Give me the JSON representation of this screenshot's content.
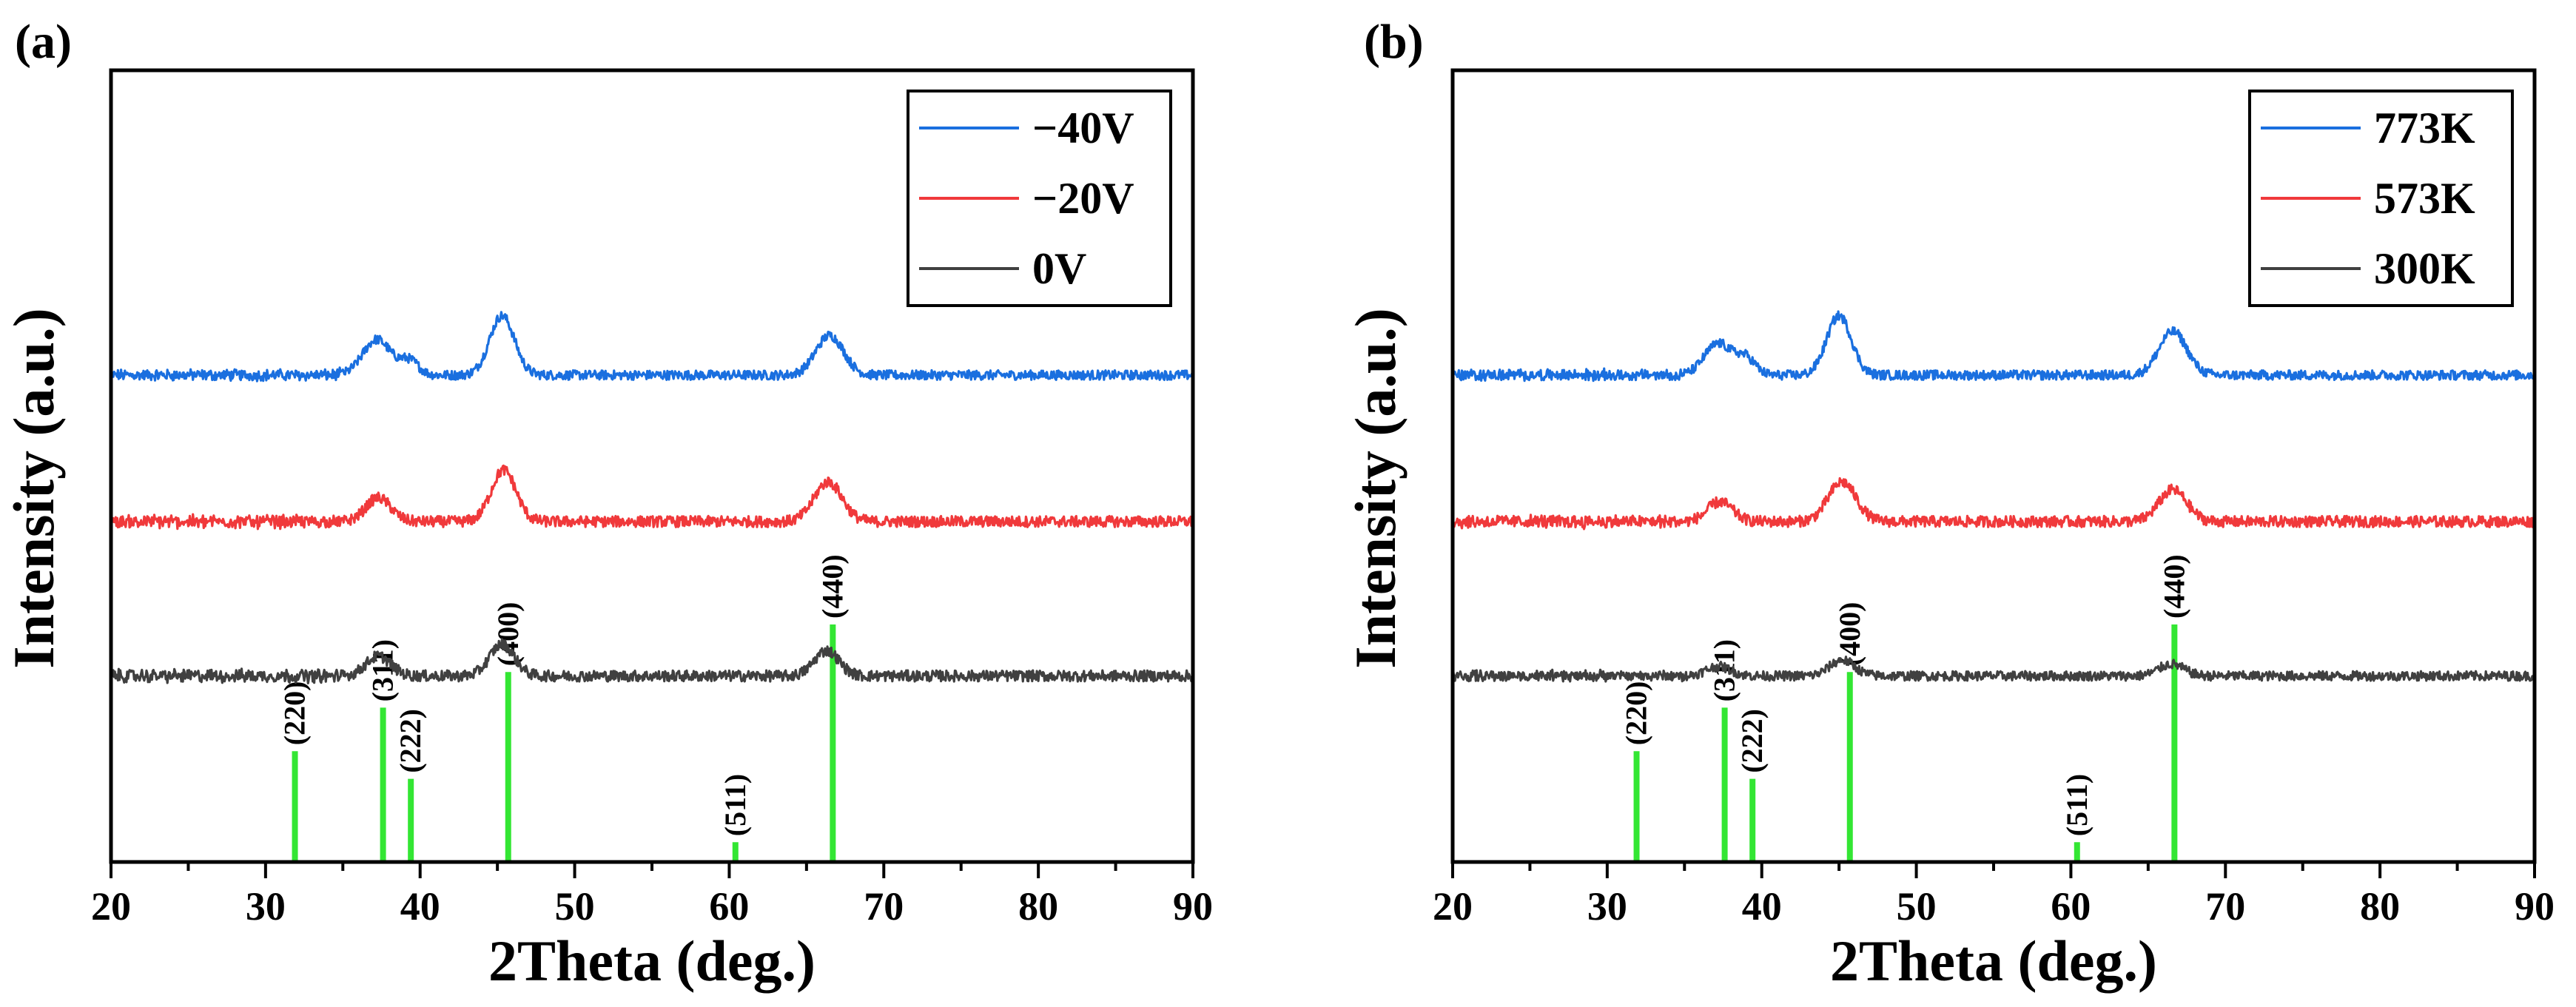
{
  "chart_data": [
    {
      "panel_label": "(a)",
      "type": "line",
      "xlabel": "2Theta (deg.)",
      "ylabel": "Intensity (a.u.)",
      "xlim": [
        20,
        90
      ],
      "xticks": [
        20,
        30,
        40,
        50,
        60,
        70,
        80,
        90
      ],
      "y_ticks_shown": false,
      "legend_position": "top-right",
      "series": [
        {
          "name": "−40V",
          "color": "#1a6fdf",
          "baseline": 0.615,
          "noise": 0.006,
          "peaks": [
            {
              "x": 37.2,
              "h": 0.045,
              "w": 0.9
            },
            {
              "x": 39.3,
              "h": 0.018,
              "w": 0.6
            },
            {
              "x": 45.3,
              "h": 0.075,
              "w": 0.8
            },
            {
              "x": 66.5,
              "h": 0.05,
              "w": 0.9
            }
          ]
        },
        {
          "name": "−20V",
          "color": "#f0393b",
          "baseline": 0.43,
          "noise": 0.007,
          "peaks": [
            {
              "x": 37.3,
              "h": 0.03,
              "w": 0.8
            },
            {
              "x": 45.4,
              "h": 0.065,
              "w": 0.8
            },
            {
              "x": 66.4,
              "h": 0.05,
              "w": 0.9
            }
          ]
        },
        {
          "name": "0V",
          "color": "#404040",
          "baseline": 0.235,
          "noise": 0.007,
          "peaks": [
            {
              "x": 37.3,
              "h": 0.025,
              "w": 0.8
            },
            {
              "x": 45.3,
              "h": 0.04,
              "w": 0.8
            },
            {
              "x": 66.3,
              "h": 0.032,
              "w": 0.8
            }
          ]
        }
      ],
      "reference_color": "#33e633",
      "reference_peaks": [
        {
          "x": 31.9,
          "label": "(220)",
          "height": 0.14
        },
        {
          "x": 37.6,
          "label": "(311)",
          "height": 0.195
        },
        {
          "x": 39.4,
          "label": "(222)",
          "height": 0.105
        },
        {
          "x": 45.7,
          "label": "(400)",
          "height": 0.24
        },
        {
          "x": 60.4,
          "label": "(511)",
          "height": 0.025
        },
        {
          "x": 66.7,
          "label": "(440)",
          "height": 0.3
        }
      ]
    },
    {
      "panel_label": "(b)",
      "type": "line",
      "xlabel": "2Theta (deg.)",
      "ylabel": "Intensity (a.u.)",
      "xlim": [
        20,
        90
      ],
      "xticks": [
        20,
        30,
        40,
        50,
        60,
        70,
        80,
        90
      ],
      "y_ticks_shown": false,
      "legend_position": "top-right",
      "series": [
        {
          "name": "773K",
          "color": "#1a6fdf",
          "baseline": 0.615,
          "noise": 0.006,
          "peaks": [
            {
              "x": 37.2,
              "h": 0.04,
              "w": 0.9
            },
            {
              "x": 39.0,
              "h": 0.02,
              "w": 0.6
            },
            {
              "x": 45.0,
              "h": 0.075,
              "w": 0.8
            },
            {
              "x": 66.6,
              "h": 0.055,
              "w": 0.9
            }
          ]
        },
        {
          "name": "573K",
          "color": "#f0393b",
          "baseline": 0.43,
          "noise": 0.007,
          "peaks": [
            {
              "x": 37.3,
              "h": 0.025,
              "w": 0.8
            },
            {
              "x": 45.2,
              "h": 0.05,
              "w": 0.9
            },
            {
              "x": 66.6,
              "h": 0.04,
              "w": 0.9
            }
          ]
        },
        {
          "name": "300K",
          "color": "#404040",
          "baseline": 0.235,
          "noise": 0.006,
          "peaks": [
            {
              "x": 37.2,
              "h": 0.012,
              "w": 0.8
            },
            {
              "x": 45.2,
              "h": 0.02,
              "w": 0.8
            },
            {
              "x": 66.5,
              "h": 0.015,
              "w": 0.8
            }
          ]
        }
      ],
      "reference_color": "#33e633",
      "reference_peaks": [
        {
          "x": 31.9,
          "label": "(220)",
          "height": 0.14
        },
        {
          "x": 37.6,
          "label": "(311)",
          "height": 0.195
        },
        {
          "x": 39.4,
          "label": "(222)",
          "height": 0.105
        },
        {
          "x": 45.7,
          "label": "(400)",
          "height": 0.24
        },
        {
          "x": 60.4,
          "label": "(511)",
          "height": 0.025
        },
        {
          "x": 66.7,
          "label": "(440)",
          "height": 0.3
        }
      ]
    }
  ]
}
